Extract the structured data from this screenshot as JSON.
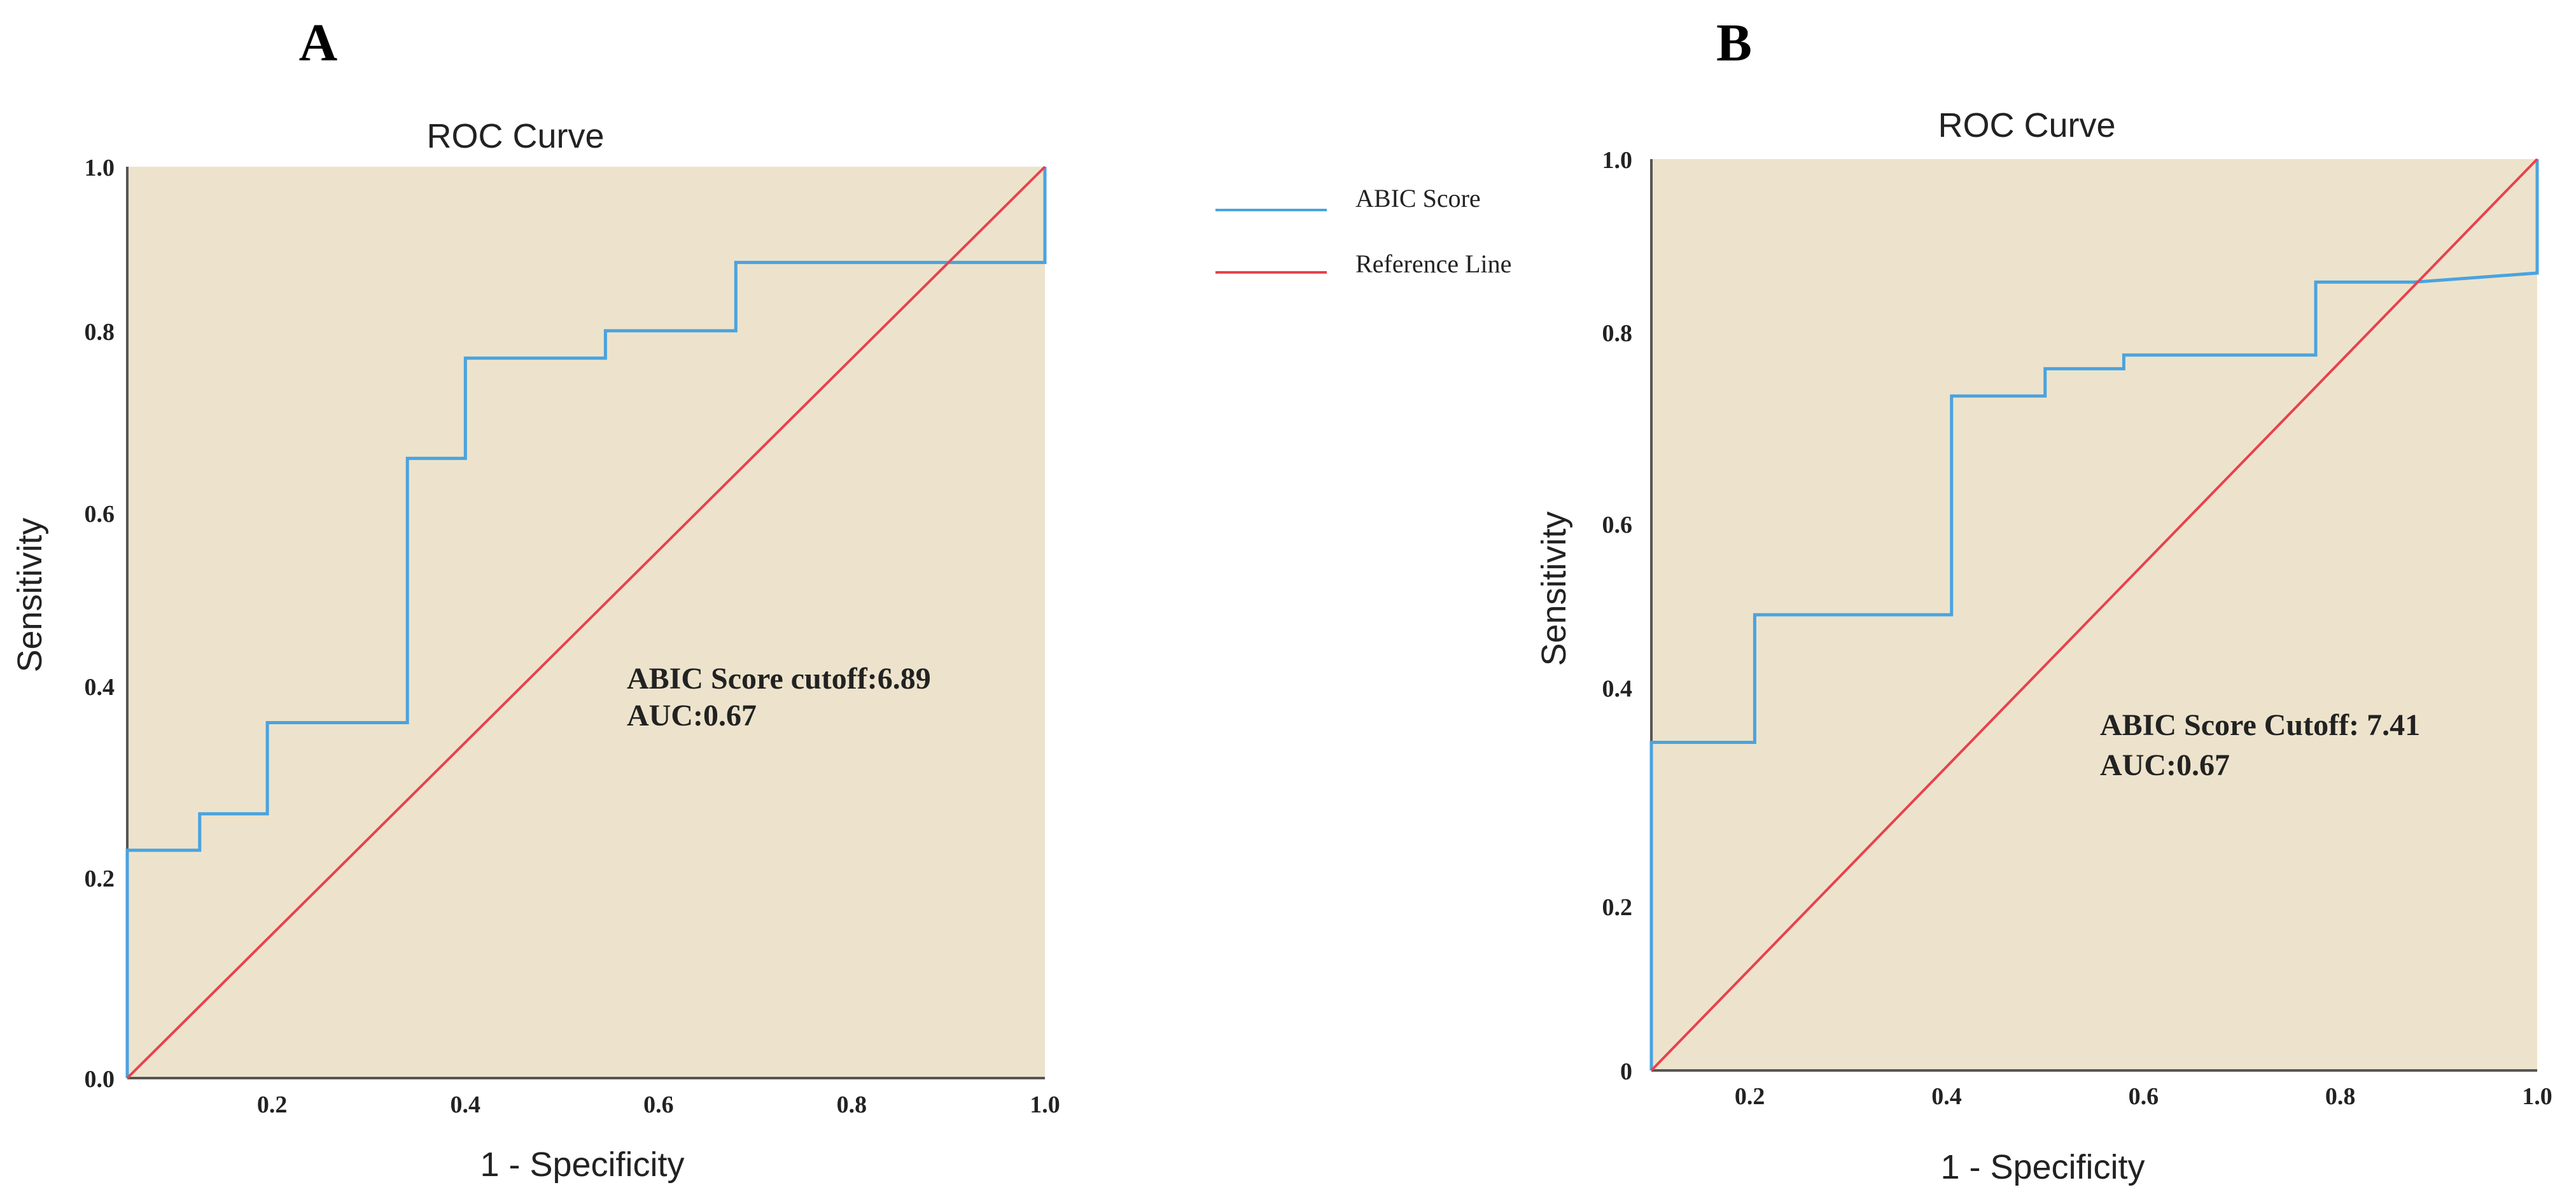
{
  "legend": {
    "items": [
      {
        "label": "ABIC Score",
        "color": "#4aa3df"
      },
      {
        "label": "Reference Line",
        "color": "#e8414e"
      }
    ]
  },
  "chart_data": [
    {
      "panel": "A",
      "type": "line",
      "title": "ROC Curve",
      "xlabel": "1 - Specificity",
      "ylabel": "Sensitivity",
      "xlim": [
        0.05,
        1.0
      ],
      "ylim": [
        0.0,
        1.0
      ],
      "xticks": [
        "0.2",
        "0.4",
        "0.6",
        "0.8",
        "1.0"
      ],
      "yticks": [
        "0.0",
        "0.2",
        "0.4",
        "0.6",
        "0.8",
        "1.0"
      ],
      "ytick_values": [
        0.0,
        0.22,
        0.43,
        0.62,
        0.82,
        1.0
      ],
      "xtick_values": [
        0.2,
        0.4,
        0.6,
        0.8,
        1.0
      ],
      "annotations": [
        "ABIC Score cutoff:6.89",
        "AUC:0.67"
      ],
      "series": [
        {
          "name": "ABIC Score",
          "color": "#4aa3df",
          "x": [
            0.05,
            0.05,
            0.125,
            0.125,
            0.195,
            0.195,
            0.34,
            0.34,
            0.4,
            0.4,
            0.545,
            0.545,
            0.68,
            0.68,
            1.0,
            1.0
          ],
          "y": [
            0.0,
            0.25,
            0.25,
            0.29,
            0.29,
            0.39,
            0.39,
            0.68,
            0.68,
            0.79,
            0.79,
            0.82,
            0.82,
            0.895,
            0.895,
            1.0
          ]
        },
        {
          "name": "Reference Line",
          "color": "#e8414e",
          "x": [
            0.05,
            1.0
          ],
          "y": [
            0.0,
            1.0
          ]
        }
      ]
    },
    {
      "panel": "B",
      "type": "line",
      "title": "ROC Curve",
      "xlabel": "1 - Specificity",
      "ylabel": "Sensitivity",
      "xlim": [
        0.1,
        1.0
      ],
      "ylim": [
        0.0,
        1.0
      ],
      "xticks": [
        "0.2",
        "0.4",
        "0.6",
        "0.8",
        "1.0"
      ],
      "yticks": [
        "0",
        "0.2",
        "0.4",
        "0.6",
        "0.8",
        "1.0"
      ],
      "ytick_values": [
        0.0,
        0.18,
        0.42,
        0.6,
        0.81,
        1.0
      ],
      "xtick_values": [
        0.2,
        0.4,
        0.6,
        0.8,
        1.0
      ],
      "annotations": [
        "ABIC Score Cutoff: 7.41",
        "AUC:0.67"
      ],
      "series": [
        {
          "name": "ABIC Score",
          "color": "#4aa3df",
          "x": [
            0.1,
            0.1,
            0.205,
            0.205,
            0.405,
            0.405,
            0.5,
            0.5,
            0.58,
            0.58,
            0.775,
            0.775,
            0.875,
            1.0,
            1.0
          ],
          "y": [
            0.0,
            0.36,
            0.36,
            0.5,
            0.5,
            0.74,
            0.74,
            0.77,
            0.77,
            0.785,
            0.785,
            0.865,
            0.865,
            0.875,
            1.0
          ]
        },
        {
          "name": "Reference Line",
          "color": "#e8414e",
          "x": [
            0.1,
            1.0
          ],
          "y": [
            0.0,
            1.0
          ]
        }
      ]
    }
  ]
}
